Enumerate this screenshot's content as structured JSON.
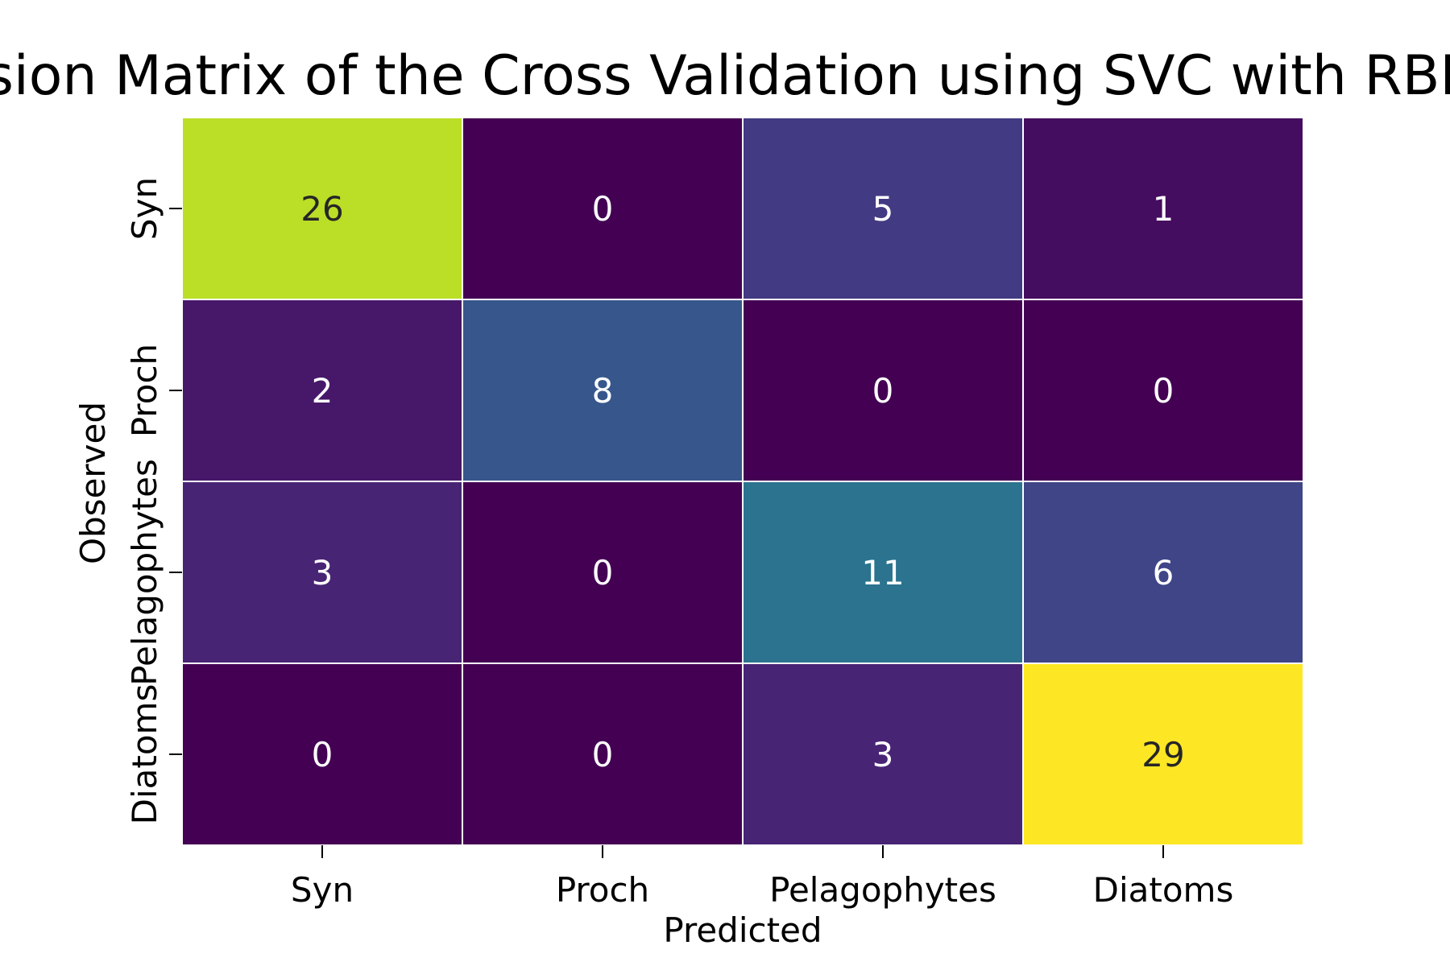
{
  "chart_data": {
    "type": "heatmap",
    "title": "Confusion Matrix of the Cross Validation using SVC with RBF Kernel",
    "xlabel": "Predicted",
    "ylabel": "Observed",
    "x_categories": [
      "Syn",
      "Proch",
      "Pelagophytes",
      "Diatoms"
    ],
    "y_categories": [
      "Syn",
      "Proch",
      "Pelagophytes",
      "Diatoms"
    ],
    "values": [
      [
        26,
        0,
        5,
        1
      ],
      [
        2,
        8,
        0,
        0
      ],
      [
        3,
        0,
        11,
        6
      ],
      [
        0,
        0,
        3,
        29
      ]
    ],
    "colormap": "viridis",
    "value_range": [
      0,
      29
    ],
    "cell_border_color": "#ffffff",
    "colorbar": false,
    "grid": false
  }
}
